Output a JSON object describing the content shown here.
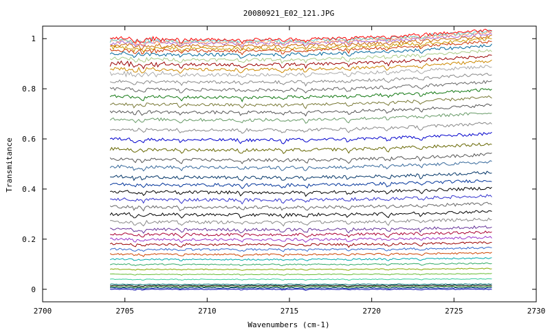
{
  "chart_data": {
    "type": "line",
    "title": "20080921_E02_121.JPG",
    "xlabel": "Wavenumbers (cm-1)",
    "ylabel": "Transmitance",
    "xlim": [
      2700,
      2730
    ],
    "ylim": [
      -0.05,
      1.05
    ],
    "x_ticks": [
      "2700",
      "2705",
      "2710",
      "2715",
      "2720",
      "2725",
      "2730"
    ],
    "y_ticks": [
      "0",
      "0.2",
      "0.4",
      "0.6",
      "0.8",
      "1"
    ],
    "grid": false,
    "legend": "none",
    "x_range_data": [
      2704.1,
      2727.3
    ],
    "series_baselines": [
      0.0,
      0.005,
      0.01,
      0.015,
      0.02,
      0.04,
      0.06,
      0.08,
      0.1,
      0.12,
      0.14,
      0.16,
      0.18,
      0.2,
      0.22,
      0.24,
      0.27,
      0.3,
      0.33,
      0.36,
      0.39,
      0.42,
      0.45,
      0.49,
      0.52,
      0.56,
      0.6,
      0.64,
      0.68,
      0.71,
      0.74,
      0.77,
      0.8,
      0.83,
      0.86,
      0.88,
      0.9,
      0.92,
      0.94,
      0.955,
      0.965,
      0.975,
      0.985,
      0.99,
      0.995,
      1.0
    ],
    "series_colors": [
      "#0000aa",
      "#003399",
      "#006600",
      "#000000",
      "#007777",
      "#33cc99",
      "#66bb33",
      "#88aa00",
      "#33aa66",
      "#00aaaa",
      "#cc4400",
      "#3366cc",
      "#990000",
      "#9933cc",
      "#aa0033",
      "#663399",
      "#888888",
      "#000000",
      "#666666",
      "#3333cc",
      "#000000",
      "#003399",
      "#003366",
      "#336699",
      "#555555",
      "#666600",
      "#0000cc",
      "#888888",
      "#669966",
      "#555555",
      "#777733",
      "#117711",
      "#666666",
      "#888888",
      "#aaaaaa",
      "#cc8800",
      "#990000",
      "#aacc88",
      "#006699",
      "#cc3300",
      "#cc9900",
      "#cc6600",
      "#aa66cc",
      "#ff9966",
      "#66cccc",
      "#ff0000"
    ],
    "colors": {
      "axis": "#000000",
      "background": "#ffffff"
    }
  }
}
